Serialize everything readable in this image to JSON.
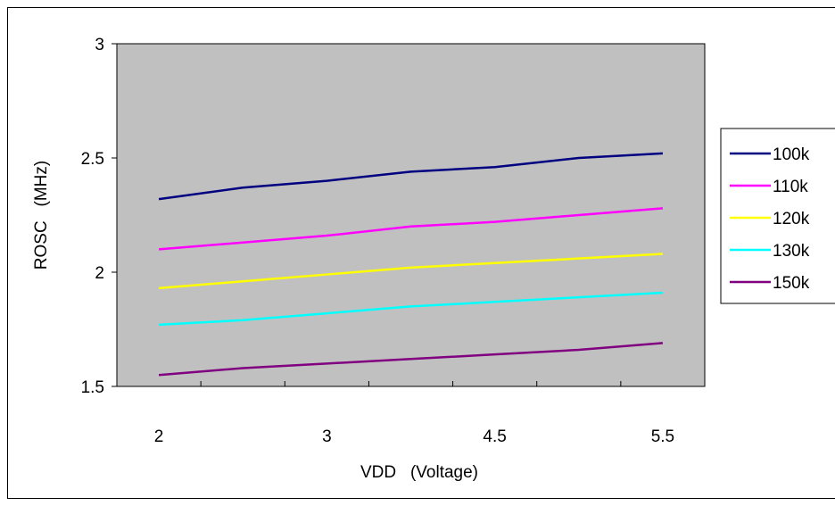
{
  "chart_data": {
    "type": "line",
    "x_categories": [
      "2",
      "",
      "3",
      "",
      "4.5",
      "",
      "5.5"
    ],
    "x_tick_labels": [
      "2",
      "3",
      "4.5",
      "5.5"
    ],
    "xlabel": "VDD   (Voltage)",
    "ylabel": "ROSC   (MHz)",
    "ylim": [
      1.5,
      3
    ],
    "y_ticks": [
      1.5,
      2,
      2.5,
      3
    ],
    "y_tick_labels": [
      "1.5",
      "2",
      "2.5",
      "3"
    ],
    "grid": false,
    "plot_background": "#c0c0c0",
    "legend_position": "right",
    "series": [
      {
        "name": "100k",
        "color": "#000080",
        "values": [
          2.32,
          2.37,
          2.4,
          2.44,
          2.46,
          2.5,
          2.52
        ]
      },
      {
        "name": "110k",
        "color": "#ff00ff",
        "values": [
          2.1,
          2.13,
          2.16,
          2.2,
          2.22,
          2.25,
          2.28
        ]
      },
      {
        "name": "120k",
        "color": "#ffff00",
        "values": [
          1.93,
          1.96,
          1.99,
          2.02,
          2.04,
          2.06,
          2.08
        ]
      },
      {
        "name": "130k",
        "color": "#00ffff",
        "values": [
          1.77,
          1.79,
          1.82,
          1.85,
          1.87,
          1.89,
          1.91
        ]
      },
      {
        "name": "150k",
        "color": "#800080",
        "values": [
          1.55,
          1.58,
          1.6,
          1.62,
          1.64,
          1.66,
          1.69
        ]
      }
    ]
  }
}
